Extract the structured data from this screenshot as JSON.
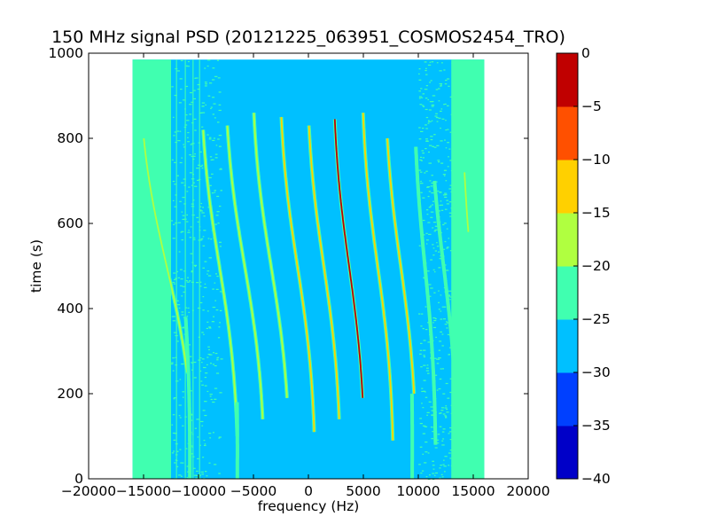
{
  "chart_data": {
    "type": "heatmap",
    "title": "150 MHz signal PSD (20121225_063951_COSMOS2454_TRO)",
    "xlabel": "frequency (Hz)",
    "ylabel": "time (s)",
    "xlim": [
      -20000,
      20000
    ],
    "ylim": [
      0,
      1000
    ],
    "x_ticks": [
      -20000,
      -15000,
      -10000,
      -5000,
      0,
      5000,
      10000,
      15000,
      20000
    ],
    "x_tick_labels": [
      "−20000",
      "−15000",
      "−10000",
      "−5000",
      "0",
      "5000",
      "10000",
      "15000",
      "20000"
    ],
    "y_ticks": [
      0,
      200,
      400,
      600,
      800,
      1000
    ],
    "y_tick_labels": [
      "0",
      "200",
      "400",
      "600",
      "800",
      "1000"
    ],
    "data_extent": {
      "x": [
        -16000,
        16000
      ],
      "y": [
        0,
        985
      ]
    },
    "background_level": -27,
    "edge_level": -22,
    "grid": false,
    "colorbar": {
      "levels": [
        -40,
        -35,
        -30,
        -25,
        -20,
        -15,
        -10,
        -5,
        0
      ],
      "tick_labels": [
        "−40",
        "−35",
        "−30",
        "−25",
        "−20",
        "−15",
        "−10",
        "−5",
        "0"
      ],
      "colors": [
        "#0000c8",
        "#0040ff",
        "#00c0ff",
        "#40ffb0",
        "#b0ff40",
        "#ffd000",
        "#ff5000",
        "#c00000"
      ]
    },
    "traces": [
      {
        "center": 3700,
        "amp": -2000,
        "t_range": [
          190,
          845
        ],
        "level": -3
      },
      {
        "center": 1400,
        "amp": -2100,
        "t_range": [
          140,
          830
        ],
        "level": -12
      },
      {
        "center": 6300,
        "amp": -2000,
        "t_range": [
          90,
          860
        ],
        "level": -12
      },
      {
        "center": -1000,
        "amp": -2200,
        "t_range": [
          110,
          850
        ],
        "level": -13
      },
      {
        "center": 8400,
        "amp": -2000,
        "t_range": [
          200,
          800
        ],
        "level": -12
      },
      {
        "center": -3400,
        "amp": -2300,
        "t_range": [
          190,
          860
        ],
        "level": -17
      },
      {
        "center": 10600,
        "amp": -1500,
        "t_range": [
          80,
          780
        ],
        "level": -20
      },
      {
        "center": -5800,
        "amp": -2400,
        "t_range": [
          140,
          830
        ],
        "level": -17
      },
      {
        "center": -8100,
        "amp": -2300,
        "t_range": [
          100,
          820
        ],
        "level": -18
      },
      {
        "center": 12300,
        "amp": -1800,
        "t_range": [
          100,
          700
        ],
        "level": -20
      },
      {
        "center": -12900,
        "amp": -3200,
        "t_range": [
          250,
          800
        ],
        "level": -18
      },
      {
        "center": -11500,
        "amp": -1200,
        "t_range": [
          0,
          380
        ],
        "level": -20
      },
      {
        "center": 14800,
        "amp": -1300,
        "t_range": [
          580,
          720
        ],
        "level": -16
      },
      {
        "center": -7000,
        "amp": -1000,
        "t_range": [
          0,
          180
        ],
        "level": -20
      },
      {
        "center": 9000,
        "amp": -900,
        "t_range": [
          0,
          200
        ],
        "level": -20
      }
    ],
    "vertical_lines": [
      -12000,
      -11200,
      -10500,
      -9900
    ]
  }
}
